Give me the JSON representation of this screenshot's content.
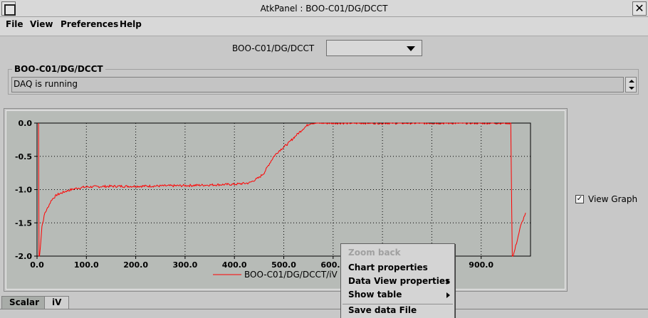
{
  "window": {
    "title": "AtkPanel : BOO-C01/DG/DCCT"
  },
  "menubar": {
    "items": [
      "File",
      "View",
      "Preferences",
      "Help"
    ]
  },
  "device": {
    "label": "BOO-C01/DG/DCCT",
    "selected": ""
  },
  "status": {
    "group_title": "BOO-C01/DG/DCCT",
    "text": "DAQ is running"
  },
  "chart_data": {
    "type": "line",
    "y_ticks": [
      "0.0",
      "-0.5",
      "-1.0",
      "-1.5",
      "-2.0"
    ],
    "x_ticks": [
      "0.0",
      "100.0",
      "200.0",
      "300.0",
      "400.0",
      "500.0",
      "600.0",
      "700.0",
      "800.0",
      "900.0"
    ],
    "xlim": [
      0,
      1000
    ],
    "ylim": [
      -2.0,
      0.0
    ],
    "grid": true,
    "legend_position": "bottom-center",
    "series": [
      {
        "name": "BOO-C01/DG/DCCT/iV",
        "color": "#ff0000",
        "x": [
          3,
          4,
          5,
          8,
          10,
          13,
          16,
          20,
          25,
          30,
          40,
          50,
          60,
          80,
          100,
          150,
          200,
          300,
          400,
          430,
          450,
          460,
          470,
          480,
          490,
          500,
          510,
          520,
          530,
          540,
          550,
          555,
          600,
          700,
          800,
          900,
          960,
          963,
          965,
          970,
          975,
          980,
          985,
          990
        ],
        "y": [
          0.0,
          -2.0,
          -2.0,
          -1.75,
          -1.55,
          -1.45,
          -1.35,
          -1.3,
          -1.22,
          -1.15,
          -1.08,
          -1.05,
          -1.02,
          -0.98,
          -0.96,
          -0.95,
          -0.95,
          -0.94,
          -0.92,
          -0.9,
          -0.82,
          -0.75,
          -0.62,
          -0.5,
          -0.42,
          -0.36,
          -0.3,
          -0.22,
          -0.15,
          -0.08,
          -0.02,
          0.0,
          0.0,
          0.0,
          0.0,
          0.0,
          0.0,
          -2.0,
          -2.0,
          -1.85,
          -1.7,
          -1.55,
          -1.45,
          -1.35
        ]
      }
    ]
  },
  "view_graph": {
    "label": "View Graph",
    "checked": true
  },
  "tabs": [
    "Scalar",
    "iV"
  ],
  "context_menu": {
    "items": [
      {
        "label": "Zoom back",
        "enabled": false,
        "submenu": false
      },
      {
        "label": "Chart properties",
        "enabled": true,
        "submenu": false
      },
      {
        "label": "Data View properties",
        "enabled": true,
        "submenu": true
      },
      {
        "label": "Show table",
        "enabled": true,
        "submenu": true
      },
      {
        "label": "Save data File",
        "enabled": true,
        "submenu": false
      }
    ]
  }
}
